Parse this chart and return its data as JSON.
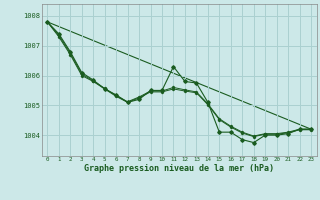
{
  "title": "Graphe pression niveau de la mer (hPa)",
  "bg_color": "#cce8e8",
  "grid_color": "#aad0d0",
  "line_color": "#1a5c20",
  "xlim": [
    -0.5,
    23.5
  ],
  "ylim": [
    1003.3,
    1008.4
  ],
  "yticks": [
    1004,
    1005,
    1006,
    1007,
    1008
  ],
  "xticks": [
    0,
    1,
    2,
    3,
    4,
    5,
    6,
    7,
    8,
    9,
    10,
    11,
    12,
    13,
    14,
    15,
    16,
    17,
    18,
    19,
    20,
    21,
    22,
    23
  ],
  "series_jagged": [
    1007.8,
    1007.4,
    1006.8,
    1006.1,
    1005.85,
    1005.55,
    1005.35,
    1005.1,
    1005.2,
    1005.5,
    1005.5,
    1006.3,
    1005.8,
    1005.75,
    1005.1,
    1004.1,
    1004.1,
    1003.85,
    1003.75,
    1004.0,
    1004.0,
    1004.05,
    1004.2,
    1004.2
  ],
  "series_smooth1": [
    1007.8,
    1007.35,
    1006.75,
    1006.05,
    1005.82,
    1005.57,
    1005.33,
    1005.12,
    1005.28,
    1005.48,
    1005.48,
    1005.6,
    1005.52,
    1005.45,
    1005.05,
    1004.55,
    1004.3,
    1004.1,
    1003.97,
    1004.05,
    1004.05,
    1004.1,
    1004.2,
    1004.2
  ],
  "series_smooth2": [
    1007.8,
    1007.3,
    1006.7,
    1006.0,
    1005.8,
    1005.55,
    1005.3,
    1005.1,
    1005.25,
    1005.45,
    1005.45,
    1005.55,
    1005.48,
    1005.42,
    1005.02,
    1004.52,
    1004.27,
    1004.07,
    1003.95,
    1004.03,
    1004.03,
    1004.08,
    1004.18,
    1004.18
  ],
  "line_straight": [
    [
      0,
      23
    ],
    [
      1007.8,
      1004.2
    ]
  ]
}
